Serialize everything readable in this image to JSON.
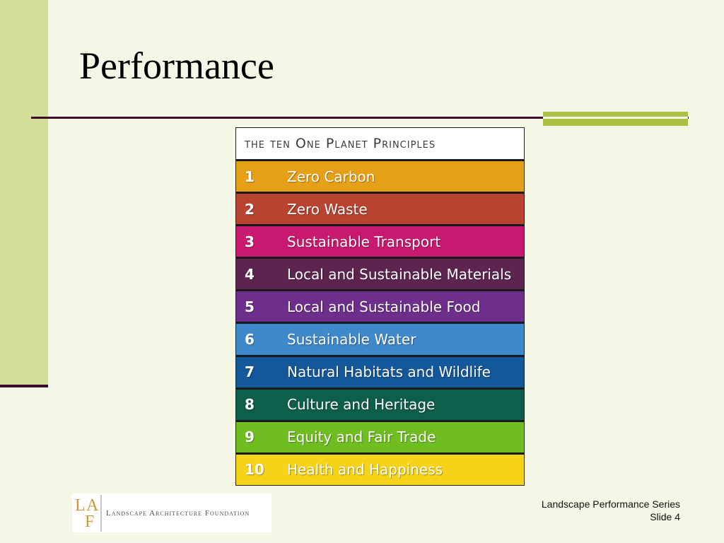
{
  "slide": {
    "title": "Performance",
    "colors": {
      "background": "#f4f6e6",
      "left_band": "#d3de99",
      "rule": "#3d0c2a",
      "accent": "#a9c042"
    }
  },
  "principles": {
    "heading": "the ten One Planet Principles",
    "items": [
      {
        "number": "1",
        "label": "Zero Carbon",
        "color": "#e5a017"
      },
      {
        "number": "2",
        "label": "Zero Waste",
        "color": "#b94331"
      },
      {
        "number": "3",
        "label": "Sustainable Transport",
        "color": "#c9186f"
      },
      {
        "number": "4",
        "label": "Local and Sustainable Materials",
        "color": "#5e2450"
      },
      {
        "number": "5",
        "label": "Local and Sustainable Food",
        "color": "#6d2f8b"
      },
      {
        "number": "6",
        "label": "Sustainable Water",
        "color": "#3f88cc"
      },
      {
        "number": "7",
        "label": "Natural Habitats and Wildlife",
        "color": "#14579b"
      },
      {
        "number": "8",
        "label": "Culture and Heritage",
        "color": "#0e5e4c"
      },
      {
        "number": "9",
        "label": "Equity and Fair Trade",
        "color": "#6fbd21"
      },
      {
        "number": "10",
        "label": "Health and Happiness",
        "color": "#f5d318"
      }
    ]
  },
  "logo": {
    "mark_letters": [
      "L",
      "A",
      "F"
    ],
    "name": "Landscape Architecture Foundation",
    "mark_color": "#c99a3a"
  },
  "footer": {
    "series": "Landscape Performance Series",
    "slide_number": "Slide 4"
  }
}
